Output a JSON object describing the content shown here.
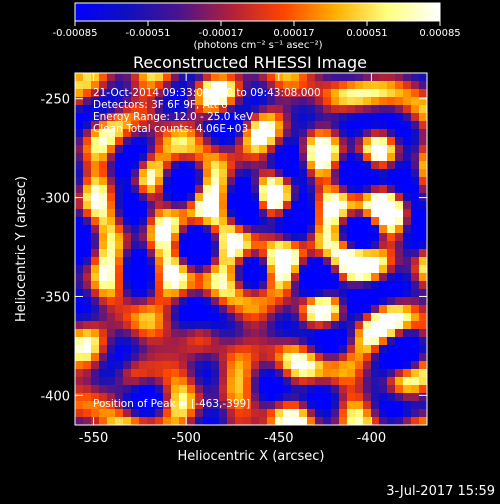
{
  "chart_data": {
    "type": "heatmap",
    "title": "Reconstructed RHESSI Image",
    "xlabel": "Heliocentric X (arcsec)",
    "ylabel": "Heliocentric Y (arcsec)",
    "xlim": [
      -560,
      -370
    ],
    "ylim": [
      -415,
      -237
    ],
    "x_ticks": [
      -550,
      -500,
      -450,
      -400
    ],
    "y_ticks": [
      -250,
      -300,
      -350,
      -400
    ],
    "colorbar": {
      "min": -0.00085,
      "max": 0.00085,
      "tick_labels": [
        "-0.00085",
        "-0.00051",
        "-0.00017",
        "0.00017",
        "0.00051",
        "0.00085"
      ],
      "unit_label": "(photons cm⁻² s⁻¹ asec⁻²)",
      "colormap": [
        "#0000ff",
        "#1010c0",
        "#4a148c",
        "#b0203a",
        "#ff4400",
        "#ffb000",
        "#ffff80",
        "#ffffff"
      ]
    },
    "annotations": {
      "time_range": "21-Oct-2014 09:33:08.000 to 09:43:08.000",
      "detectors": "Detectors: 3F 6F 9F, Att 0",
      "energy": "Energy Range: 12.0 - 25.0 keV",
      "clean": "Clean   Total counts: 4.06E+03",
      "peak": "Position of Peak = [-463,-399]"
    },
    "timestamp": "3-Jul-2017 15:59"
  }
}
